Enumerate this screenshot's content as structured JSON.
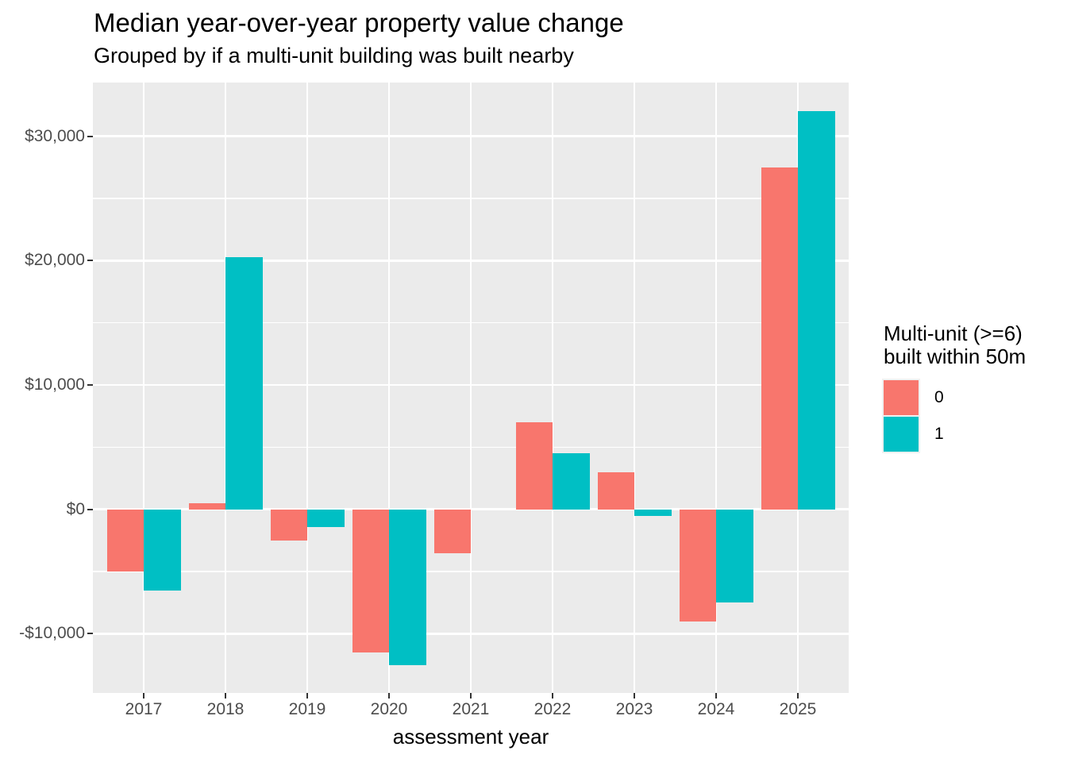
{
  "title": "Median year-over-year property value change",
  "subtitle": "Grouped by if a multi-unit building was built nearby",
  "x_axis_title": "assessment year",
  "legend": {
    "title_line1": "Multi-unit (>=6)",
    "title_line2": "built within 50m",
    "items": [
      {
        "label": "0",
        "color": "#F8766D"
      },
      {
        "label": "1",
        "color": "#00BFC4"
      }
    ]
  },
  "colors": {
    "panel_background": "#EBEBEB",
    "gridline": "#FFFFFF",
    "axis_text": "#4D4D4D",
    "tick_mark": "#333333",
    "group_0": "#F8766D",
    "group_1": "#00BFC4"
  },
  "chart_data": {
    "type": "bar",
    "title": "Median year-over-year property value change",
    "subtitle": "Grouped by if a multi-unit building was built nearby",
    "xlabel": "assessment year",
    "ylabel": "",
    "legend_title": "Multi-unit (>=6) built within 50m",
    "legend_position": "right",
    "grid": true,
    "categories": [
      "2017",
      "2018",
      "2019",
      "2020",
      "2021",
      "2022",
      "2023",
      "2024",
      "2025"
    ],
    "series": [
      {
        "name": "0",
        "color": "#F8766D",
        "values": [
          -5000,
          500,
          -2500,
          -11500,
          -3500,
          7000,
          3000,
          -9000,
          27500
        ]
      },
      {
        "name": "1",
        "color": "#00BFC4",
        "values": [
          -6500,
          20300,
          -1400,
          -12500,
          null,
          4500,
          -550,
          -7500,
          32000
        ]
      }
    ],
    "y_major_ticks": [
      {
        "value": 30000,
        "label": "$30,000"
      },
      {
        "value": 20000,
        "label": "$20,000"
      },
      {
        "value": 10000,
        "label": "$10,000"
      },
      {
        "value": 0,
        "label": "$0"
      },
      {
        "value": -10000,
        "label": "-$10,000"
      }
    ],
    "y_minor_ticks": [
      25000,
      15000,
      5000,
      -5000
    ],
    "ylim": [
      -14760,
      34315
    ]
  }
}
